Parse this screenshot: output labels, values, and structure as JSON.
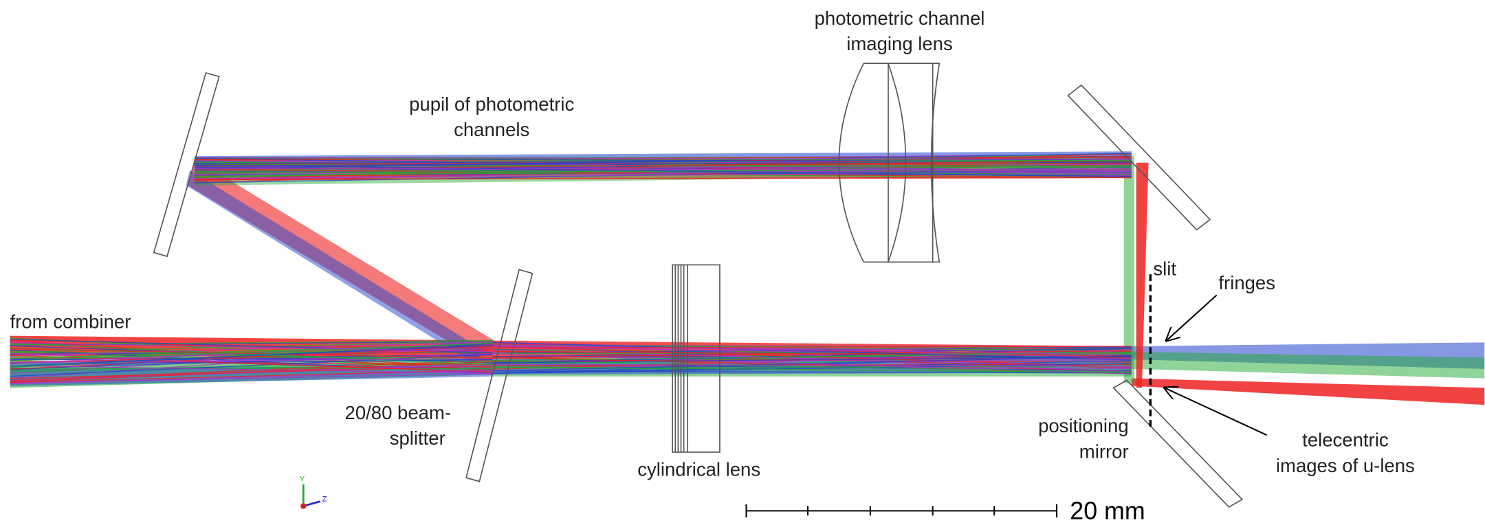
{
  "labels": {
    "imaging_lens": [
      "photometric channel",
      "imaging lens"
    ],
    "pupil": [
      "pupil of photometric",
      "channels"
    ],
    "combiner": "from combiner",
    "beamsplitter": [
      "20/80 beam-",
      "splitter"
    ],
    "cylindrical_lens": "cylindrical lens",
    "slit": "slit",
    "fringes": "fringes",
    "positioning_mirror": [
      "positioning",
      "mirror"
    ],
    "telecentric": [
      "telecentric",
      "images of u-lens"
    ]
  },
  "scale_bar": "20 mm",
  "axis": {
    "y": "Y",
    "z": "Z"
  }
}
